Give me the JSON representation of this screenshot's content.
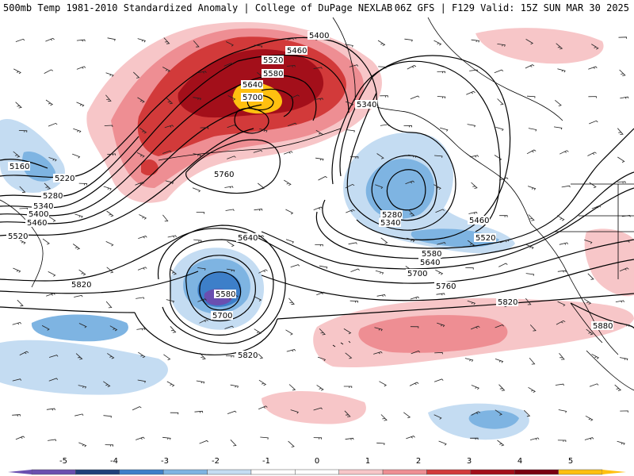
{
  "header": {
    "title_left": "500mb Temp 1981-2010 Standardized Anomaly | College of DuPage NEXLAB",
    "title_right": "06Z GFS | F129 Valid: 15Z SUN MAR 30 2025"
  },
  "height_labels": [
    "5160",
    "5220",
    "5280",
    "5340",
    "5400",
    "5460",
    "5520",
    "5400",
    "5460",
    "5520",
    "5580",
    "5640",
    "5700",
    "5760",
    "5340",
    "5280",
    "5340",
    "5460",
    "5520",
    "5580",
    "5640",
    "5700",
    "5640",
    "5580",
    "5700",
    "5760",
    "5820",
    "5820",
    "5820",
    "5880"
  ],
  "colorbar": {
    "ticks": [
      "-5",
      "-4",
      "-3",
      "-2",
      "-1",
      "0",
      "1",
      "2",
      "3",
      "4",
      "5"
    ],
    "colors": [
      "#6a4fb0",
      "#1f3f7a",
      "#3d7fc9",
      "#7eb4e2",
      "#c4dcf2",
      "#ffffff",
      "#ffffff",
      "#f7c6c8",
      "#ee8e93",
      "#d23a3a",
      "#a30f1a",
      "#7a0010",
      "#ffc010"
    ]
  },
  "colors": {
    "cold_light": "#c4dcf2",
    "cold_mid": "#7eb4e2",
    "cold_strong": "#3d7fc9",
    "cold_deep": "#1f3f7a",
    "cold_extreme": "#6a4fb0",
    "warm_light": "#f7c6c8",
    "warm_mid": "#ee8e93",
    "warm_strong": "#d23a3a",
    "warm_deep": "#a30f1a",
    "warm_extreme": "#ffc010"
  }
}
